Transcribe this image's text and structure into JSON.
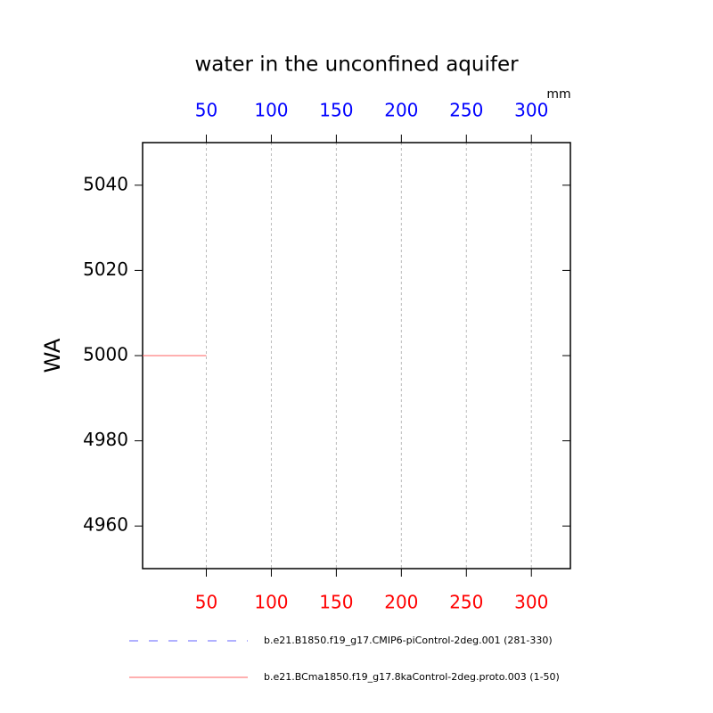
{
  "chart_data": {
    "type": "line",
    "title": "water in the unconfined aquifer",
    "units": "mm",
    "y_label": "WA",
    "x": [
      1,
      50
    ],
    "series": [
      {
        "name": "b.e21.B1850.f19_g17.CMIP6-piControl-2deg.001 (281-330)",
        "color": "#6060ff",
        "dash": true,
        "values": [
          5000,
          5000
        ]
      },
      {
        "name": "b.e21.BCma1850.f19_g17.8kaControl-2deg.proto.003 (1-50)",
        "color": "#ff6060",
        "dash": false,
        "values": [
          5000,
          5000
        ]
      }
    ],
    "xlim": [
      1,
      330
    ],
    "xticks": [
      50,
      100,
      150,
      200,
      250,
      300
    ],
    "ylim": [
      4950,
      5050
    ],
    "yticks": [
      4960,
      4980,
      5000,
      5020,
      5040
    ],
    "grid": true,
    "top_tick_color": "#0000ff",
    "bottom_tick_color": "#ff0000"
  }
}
